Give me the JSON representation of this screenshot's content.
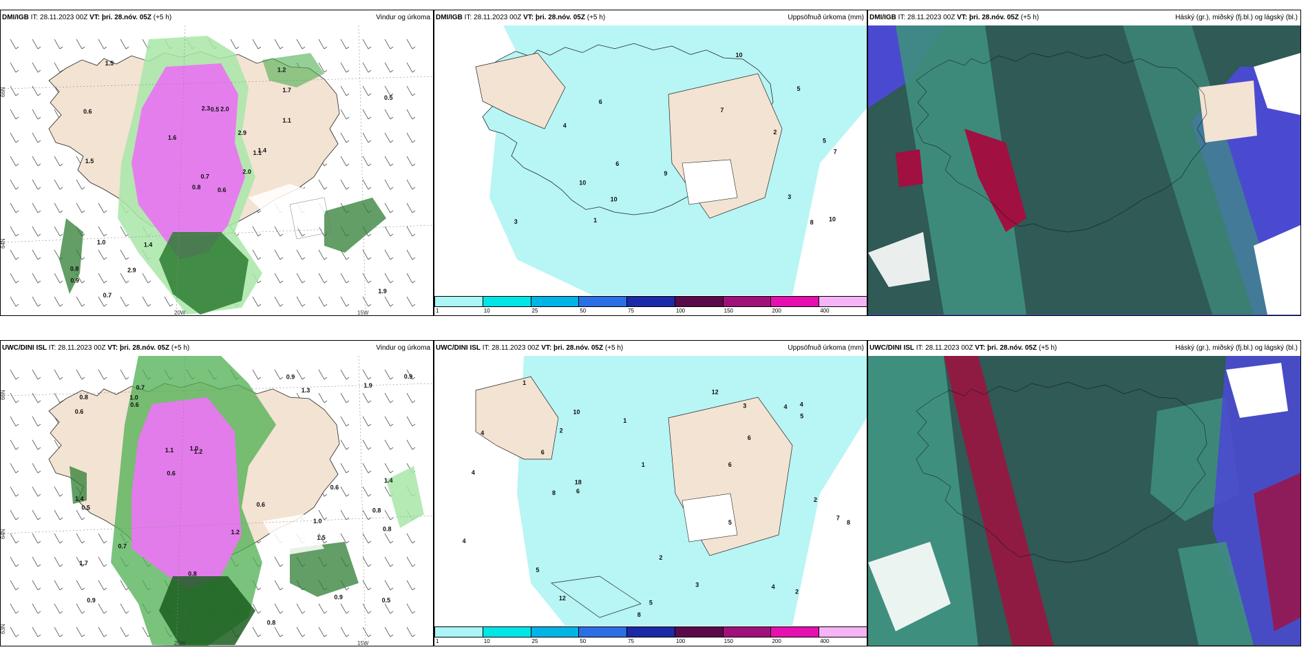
{
  "panels": [
    {
      "source": "DMI/IGB",
      "it_label": "IT:",
      "it": "28.11.2023 00Z",
      "vt_label": "VT:",
      "vt": "þri. 28.nóv. 05Z",
      "lead": "(+5 h)",
      "title": "Vindur og úrkoma"
    },
    {
      "source": "DMI/IGB",
      "it_label": "IT:",
      "it": "28.11.2023 00Z",
      "vt_label": "VT:",
      "vt": "þri. 28.nóv. 05Z",
      "lead": "(+5 h)",
      "title": "Uppsöfnuð úrkoma (mm)"
    },
    {
      "source": "DMI/IGB",
      "it_label": "IT:",
      "it": "28.11.2023 00Z",
      "vt_label": "VT:",
      "vt": "þri. 28.nóv. 05Z",
      "lead": "(+5 h)",
      "title": "Háský (gr.), miðský (fj.bl.) og lágský (bl.)"
    },
    {
      "source": "UWC/DINI ISL",
      "it_label": "IT:",
      "it": "28.11.2023 00Z",
      "vt_label": "VT:",
      "vt": "þri. 28.nóv. 05Z",
      "lead": "(+5 h)",
      "title": "Vindur og úrkoma"
    },
    {
      "source": "UWC/DINI ISL",
      "it_label": "IT:",
      "it": "28.11.2023 00Z",
      "vt_label": "VT:",
      "vt": "þri. 28.nóv. 05Z",
      "lead": "(+5 h)",
      "title": "Uppsöfnuð úrkoma (mm)"
    },
    {
      "source": "UWC/DINI ISL",
      "it_label": "IT:",
      "it": "28.11.2023 00Z",
      "vt_label": "VT:",
      "vt": "þri. 28.nóv. 05Z",
      "lead": "(+5 h)",
      "title": "Háský (gr.), miðský (fj.bl.) og lágský (bl.)"
    }
  ],
  "axis": {
    "lat66": "66N",
    "lat64": "64N",
    "lat63": "63N",
    "lon20": "20W",
    "lon15": "15W"
  },
  "colorbar": {
    "ticks": [
      "1",
      "10",
      "25",
      "50",
      "75",
      "100",
      "150",
      "200",
      "400"
    ],
    "colors": [
      "#aaf5f5",
      "#00e6e6",
      "#00b4e6",
      "#2a6fe6",
      "#1a2aa8",
      "#5a0a4a",
      "#a0107a",
      "#e610b0",
      "#f5b4f5"
    ]
  },
  "map_colors": {
    "land": "#f3e3d3",
    "rain_light": "#a8e6a8",
    "rain_mid": "#4caf50",
    "rain_dark": "#1b5e20",
    "rain_pink": "#e878f0",
    "accum": "#b8f5f5",
    "cloud_dark": "#2f5a55",
    "cloud_teal": "#3f8f7f",
    "cloud_blue": "#4a4ad0",
    "cloud_red": "#a01040"
  },
  "wind_labels": {
    "dmi": [
      "0.6",
      "0.6",
      "0.7",
      "0.8",
      "1.1",
      "1.4",
      "1.2",
      "2.0",
      "1.7",
      "2.0",
      "1.5",
      "1.9",
      "1.5",
      "0.5",
      "0.8",
      "1.1",
      "0.7",
      "2.3",
      "2.9",
      "1.0",
      "1.6",
      "0.9",
      "2.9",
      "0.5",
      "1.4"
    ],
    "uwc": [
      "1.0",
      "0.8",
      "0.9",
      "0.7",
      "1.2",
      "0.9",
      "1.7",
      "1.3",
      "1.1",
      "0.8",
      "0.6",
      "1.4",
      "0.8",
      "0.5",
      "0.8",
      "1.4",
      "1.2",
      "0.6",
      "1.0",
      "0.7",
      "0.9",
      "1.9",
      "0.6",
      "0.8",
      "0.9",
      "1.0",
      "1.5",
      "0.5",
      "0.6",
      "0.6"
    ]
  },
  "accum_labels": {
    "dmi": [
      "6",
      "5",
      "7",
      "7",
      "6",
      "10",
      "10",
      "10",
      "8",
      "5",
      "4",
      "3",
      "2",
      "1",
      "3",
      "9",
      "10"
    ],
    "uwc": [
      "4",
      "2",
      "6",
      "5",
      "4",
      "8",
      "5",
      "6",
      "4",
      "8",
      "7",
      "10",
      "6",
      "5",
      "4",
      "12",
      "18",
      "1",
      "2",
      "3",
      "4",
      "2",
      "1",
      "2",
      "3",
      "6",
      "5",
      "12",
      "1",
      "8",
      "4"
    ]
  }
}
